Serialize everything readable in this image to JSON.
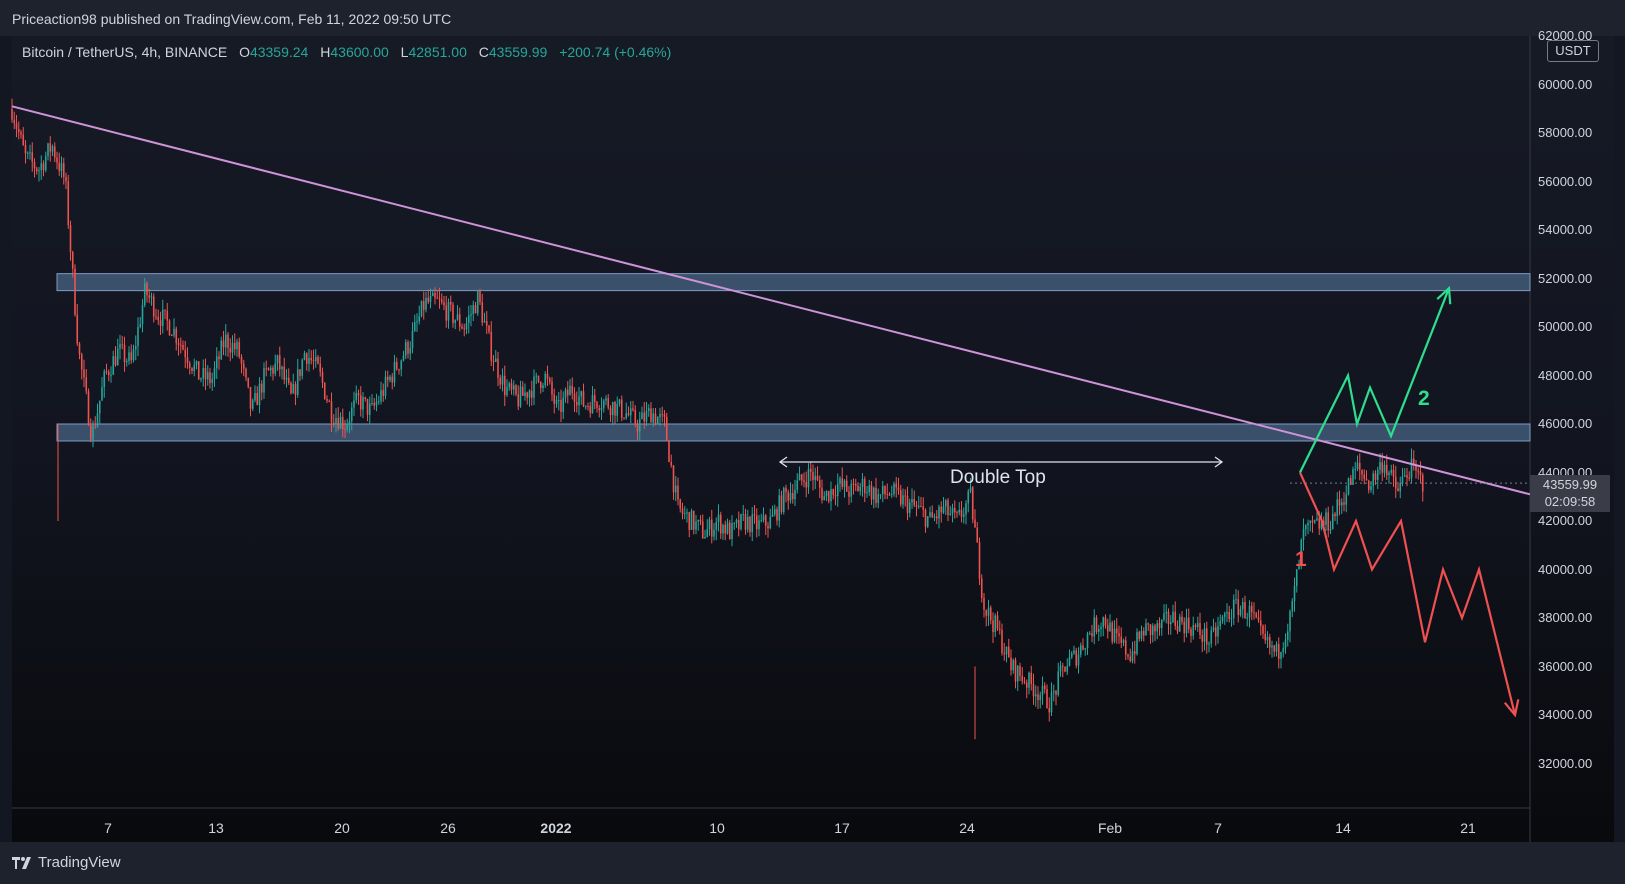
{
  "header": {
    "published_text": "Priceaction98 published on TradingView.com, Feb 11, 2022 09:50 UTC"
  },
  "legend": {
    "symbol": "Bitcoin / TetherUS, 4h, BINANCE",
    "open_label": "O",
    "open": "43359.24",
    "high_label": "H",
    "high": "43600.00",
    "low_label": "L",
    "low": "42851.00",
    "close_label": "C",
    "close": "43559.99",
    "change": "+200.74 (+0.46%)"
  },
  "price_axis": {
    "currency_badge": "USDT",
    "labels": [
      "62000.00",
      "60000.00",
      "58000.00",
      "56000.00",
      "54000.00",
      "52000.00",
      "50000.00",
      "48000.00",
      "46000.00",
      "44000.00",
      "42000.00",
      "40000.00",
      "38000.00",
      "36000.00",
      "34000.00",
      "32000.00"
    ],
    "last_price": "43559.99",
    "countdown": "02:09:58"
  },
  "time_axis": {
    "labels": [
      "7",
      "13",
      "20",
      "26",
      "2022",
      "10",
      "17",
      "24",
      "Feb",
      "7",
      "14",
      "21"
    ]
  },
  "annotations": {
    "double_top": "Double Top",
    "scenario_1": "1",
    "scenario_2": "2"
  },
  "colors": {
    "bull": "#26a69a",
    "bear": "#ef5350",
    "trendline": "#ce93d8",
    "zone": "#5b7fa8",
    "scenario_up": "#2ede8f",
    "scenario_down": "#f0504f"
  },
  "footer": {
    "brand": "TradingView"
  },
  "chart_data": {
    "type": "candlestick",
    "symbol": "Bitcoin / TetherUS",
    "interval": "4h",
    "exchange": "BINANCE",
    "ylim": [
      31000,
      62000
    ],
    "resistance_zone": [
      51500,
      52200
    ],
    "support_zone": [
      45300,
      46000
    ],
    "trendline": [
      [
        "2021-11-01",
        59100
      ],
      [
        "2022-02-23",
        43100
      ]
    ],
    "double_top": [
      [
        "2022-01-13",
        44500
      ],
      [
        "2022-02-08",
        44500
      ]
    ],
    "scenario_1_path": [
      44000,
      42000,
      40000,
      42000,
      40000,
      42000,
      37000,
      40000,
      38000,
      40000,
      34000
    ],
    "scenario_2_path": [
      44000,
      48000,
      46000,
      47500,
      45500,
      51600
    ],
    "price_path": [
      [
        "2021-11-01",
        59000
      ],
      [
        "2021-11-02",
        57000
      ],
      [
        "2021-11-03",
        56500
      ],
      [
        "2021-11-04",
        57500
      ],
      [
        "2021-11-05",
        56000
      ],
      [
        "2021-11-06",
        49000
      ],
      [
        "2021-11-07",
        45500
      ],
      [
        "2021-11-08",
        48000
      ],
      [
        "2021-11-09",
        49000
      ],
      [
        "2021-11-10",
        48500
      ],
      [
        "2021-11-11",
        51500
      ],
      [
        "2021-11-12",
        50500
      ],
      [
        "2021-11-13",
        50000
      ],
      [
        "2021-11-14",
        49000
      ],
      [
        "2021-11-15",
        48000
      ],
      [
        "2021-11-16",
        47800
      ],
      [
        "2021-11-17",
        49500
      ],
      [
        "2021-11-18",
        49000
      ],
      [
        "2021-11-19",
        46500
      ],
      [
        "2021-11-20",
        48000
      ],
      [
        "2021-11-21",
        48500
      ],
      [
        "2021-11-22",
        47000
      ],
      [
        "2021-11-23",
        49000
      ],
      [
        "2021-11-24",
        48200
      ],
      [
        "2021-11-25",
        46500
      ],
      [
        "2021-11-26",
        46000
      ],
      [
        "2021-11-27",
        47000
      ],
      [
        "2021-11-28",
        46500
      ],
      [
        "2021-11-29",
        47500
      ],
      [
        "2021-11-30",
        48500
      ],
      [
        "2021-12-01",
        49500
      ],
      [
        "2021-12-02",
        51000
      ],
      [
        "2021-12-03",
        51000
      ],
      [
        "2021-12-04",
        50500
      ],
      [
        "2021-12-05",
        50000
      ],
      [
        "2021-12-06",
        51200
      ],
      [
        "2021-12-07",
        49000
      ],
      [
        "2021-12-08",
        47500
      ],
      [
        "2021-12-09",
        47000
      ],
      [
        "2021-12-10",
        47500
      ],
      [
        "2021-12-11",
        48000
      ],
      [
        "2021-12-12",
        46500
      ],
      [
        "2021-12-13",
        47500
      ],
      [
        "2021-12-14",
        46800
      ],
      [
        "2021-12-15",
        47000
      ],
      [
        "2021-12-16",
        46800
      ],
      [
        "2021-12-17",
        46500
      ],
      [
        "2021-12-18",
        46000
      ],
      [
        "2021-12-19",
        46500
      ],
      [
        "2021-12-20",
        46000
      ],
      [
        "2021-12-21",
        42500
      ],
      [
        "2021-12-22",
        42000
      ],
      [
        "2021-12-23",
        41500
      ],
      [
        "2021-12-24",
        42000
      ],
      [
        "2021-12-25",
        41500
      ],
      [
        "2021-12-26",
        42000
      ],
      [
        "2021-12-27",
        41800
      ],
      [
        "2021-12-28",
        42000
      ],
      [
        "2021-12-29",
        43000
      ],
      [
        "2021-12-30",
        43500
      ],
      [
        "2021-12-31",
        44000
      ],
      [
        "2022-01-01",
        43000
      ],
      [
        "2022-01-02",
        43500
      ],
      [
        "2022-01-03",
        43200
      ],
      [
        "2022-01-04",
        43500
      ],
      [
        "2022-01-05",
        43000
      ],
      [
        "2022-01-06",
        43200
      ],
      [
        "2022-01-07",
        42800
      ],
      [
        "2022-01-08",
        42500
      ],
      [
        "2022-01-09",
        42000
      ],
      [
        "2022-01-10",
        42500
      ],
      [
        "2022-01-11",
        42000
      ],
      [
        "2022-01-12",
        43000
      ],
      [
        "2022-01-13",
        38500
      ],
      [
        "2022-01-14",
        37500
      ],
      [
        "2022-01-15",
        36000
      ],
      [
        "2022-01-16",
        35500
      ],
      [
        "2022-01-17",
        35000
      ],
      [
        "2022-01-18",
        34500
      ],
      [
        "2022-01-19",
        36000
      ],
      [
        "2022-01-20",
        36500
      ],
      [
        "2022-01-21",
        37500
      ],
      [
        "2022-01-22",
        38000
      ],
      [
        "2022-01-23",
        37000
      ],
      [
        "2022-01-24",
        36500
      ],
      [
        "2022-01-25",
        37500
      ],
      [
        "2022-01-26",
        37500
      ],
      [
        "2022-01-27",
        38000
      ],
      [
        "2022-01-28",
        37800
      ],
      [
        "2022-01-29",
        37500
      ],
      [
        "2022-01-30",
        37000
      ],
      [
        "2022-01-31",
        38000
      ],
      [
        "2022-02-01",
        38500
      ],
      [
        "2022-02-02",
        38200
      ],
      [
        "2022-02-03",
        37000
      ],
      [
        "2022-02-04",
        36500
      ],
      [
        "2022-02-05",
        38000
      ],
      [
        "2022-02-06",
        41500
      ],
      [
        "2022-02-07",
        41800
      ],
      [
        "2022-02-08",
        42000
      ],
      [
        "2022-02-09",
        43000
      ],
      [
        "2022-02-10",
        44200
      ],
      [
        "2022-02-11",
        43500
      ],
      [
        "2022-02-12",
        44500
      ],
      [
        "2022-02-13",
        43200
      ],
      [
        "2022-02-14",
        44200
      ],
      [
        "2022-02-15",
        43560
      ]
    ]
  }
}
